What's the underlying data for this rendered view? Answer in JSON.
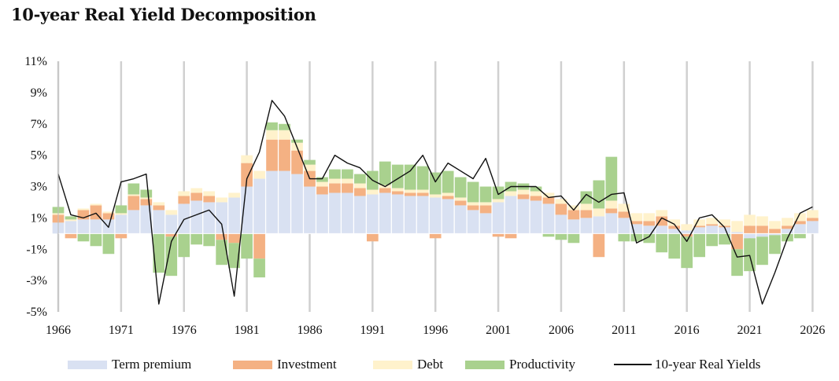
{
  "title": "10-year Real Yield Decomposition",
  "colors": {
    "term_premium": "#d9e1f2",
    "investment": "#f4b183",
    "debt": "#fff2cc",
    "productivity": "#a9d18e",
    "real_yield": "#111111",
    "gridline": "#d0d0d0"
  },
  "chart_data": {
    "type": "area",
    "title": "10-year Real Yield Decomposition",
    "xlabel": "",
    "ylabel": "",
    "ylim": [
      -5,
      11
    ],
    "xlim": [
      1966,
      2026.6
    ],
    "grid": "vertical",
    "legend_position": "bottom",
    "y_ticks": [
      "11%",
      "9%",
      "7%",
      "5%",
      "3%",
      "1%",
      "-1%",
      "-3%",
      "-5%"
    ],
    "y_tick_values": [
      11,
      9,
      7,
      5,
      3,
      1,
      -1,
      -3,
      -5
    ],
    "x_ticks": [
      "1966",
      "1971",
      "1976",
      "1981",
      "1986",
      "1991",
      "1996",
      "2001",
      "2006",
      "2011",
      "2016",
      "2021",
      "2026"
    ],
    "x_tick_values": [
      1966,
      1971,
      1976,
      1981,
      1986,
      1991,
      1996,
      2001,
      2006,
      2011,
      2016,
      2021,
      2026
    ],
    "x": [
      1966,
      1967,
      1968,
      1969,
      1970,
      1971,
      1972,
      1973,
      1974,
      1975,
      1976,
      1977,
      1978,
      1979,
      1980,
      1981,
      1982,
      1983,
      1984,
      1985,
      1986,
      1987,
      1988,
      1989,
      1990,
      1991,
      1992,
      1993,
      1994,
      1995,
      1996,
      1997,
      1998,
      1999,
      2000,
      2001,
      2002,
      2003,
      2004,
      2005,
      2006,
      2007,
      2008,
      2009,
      2010,
      2011,
      2012,
      2013,
      2014,
      2015,
      2016,
      2017,
      2018,
      2019,
      2020,
      2021,
      2022,
      2023,
      2024,
      2025,
      2026
    ],
    "series": [
      {
        "name": "Term premium",
        "values": [
          0.7,
          0.8,
          0.9,
          0.9,
          0.9,
          1.2,
          1.5,
          1.8,
          1.5,
          1.2,
          1.9,
          2.1,
          2.0,
          2.0,
          2.3,
          3.0,
          3.5,
          4.0,
          4.0,
          3.8,
          3.0,
          2.5,
          2.6,
          2.6,
          2.4,
          2.5,
          2.6,
          2.5,
          2.4,
          2.4,
          2.3,
          2.2,
          1.8,
          1.5,
          1.3,
          2.0,
          2.4,
          2.2,
          2.1,
          1.9,
          1.2,
          0.9,
          1.0,
          1.1,
          1.3,
          1.0,
          0.6,
          0.5,
          0.5,
          0.3,
          0.2,
          0.4,
          0.5,
          0.4,
          0.1,
          -0.3,
          -0.2,
          -0.1,
          0.3,
          0.6,
          0.8
        ]
      },
      {
        "name": "Investment",
        "values": [
          0.5,
          -0.3,
          0.6,
          0.9,
          0.4,
          -0.3,
          0.9,
          0.4,
          0.3,
          -0.2,
          0.5,
          0.5,
          0.4,
          -0.4,
          -0.6,
          1.5,
          -1.6,
          2.0,
          2.0,
          1.5,
          1.0,
          0.5,
          0.6,
          0.6,
          0.5,
          -0.5,
          0.3,
          0.2,
          0.2,
          0.2,
          -0.3,
          0.2,
          0.3,
          0.3,
          0.5,
          -0.2,
          -0.3,
          0.3,
          0.3,
          0.4,
          0.7,
          0.6,
          0.5,
          -1.5,
          0.3,
          0.4,
          0.2,
          0.3,
          0.6,
          0.2,
          -0.2,
          0.1,
          0.1,
          0.1,
          -1.0,
          0.5,
          0.5,
          0.3,
          0.2,
          0.2,
          0.2
        ]
      },
      {
        "name": "Debt",
        "values": [
          0.1,
          0.1,
          0.1,
          0.1,
          0.1,
          0.1,
          0.1,
          0.1,
          0.2,
          0.3,
          0.3,
          0.3,
          0.3,
          0.3,
          0.3,
          0.5,
          0.5,
          0.6,
          0.6,
          0.5,
          0.4,
          0.3,
          0.3,
          0.3,
          0.3,
          0.3,
          0.2,
          0.2,
          0.2,
          0.2,
          0.2,
          0.2,
          0.2,
          0.2,
          0.2,
          0.2,
          0.3,
          0.3,
          0.3,
          0.3,
          0.3,
          0.3,
          0.4,
          0.5,
          0.5,
          0.5,
          0.5,
          0.5,
          0.4,
          0.4,
          0.4,
          0.4,
          0.4,
          0.4,
          0.7,
          0.7,
          0.6,
          0.5,
          0.5,
          0.5,
          0.5
        ]
      },
      {
        "name": "Productivity",
        "values": [
          0.4,
          0.2,
          -0.5,
          -0.8,
          -1.3,
          0.5,
          0.7,
          0.5,
          -2.5,
          -2.5,
          -1.5,
          -0.7,
          -0.8,
          -1.6,
          -1.6,
          -1.6,
          -1.2,
          0.5,
          0.4,
          0.2,
          0.3,
          0.3,
          0.6,
          0.6,
          0.6,
          1.2,
          1.5,
          1.5,
          1.6,
          1.5,
          1.4,
          1.4,
          1.3,
          1.3,
          1.0,
          0.8,
          0.6,
          0.4,
          0.3,
          -0.2,
          -0.4,
          -0.6,
          0.8,
          1.8,
          2.8,
          -0.5,
          -0.5,
          -0.6,
          -1.2,
          -1.6,
          -2.0,
          -1.5,
          -0.8,
          -0.7,
          -1.7,
          -2.1,
          -1.8,
          -1.2,
          -0.5,
          -0.3,
          0.0
        ]
      },
      {
        "name": "10-year Real Yields",
        "values": [
          3.8,
          1.2,
          1.0,
          1.3,
          0.4,
          3.3,
          3.5,
          3.8,
          -4.5,
          -0.5,
          0.9,
          1.2,
          1.5,
          0.6,
          -4.0,
          3.5,
          5.2,
          8.5,
          7.5,
          5.5,
          3.5,
          3.5,
          5.0,
          4.5,
          4.2,
          3.4,
          3.0,
          3.5,
          4.0,
          5.0,
          3.3,
          4.5,
          4.0,
          3.5,
          4.8,
          2.5,
          3.0,
          3.0,
          3.0,
          2.3,
          2.4,
          1.5,
          2.5,
          2.0,
          2.5,
          2.6,
          -0.6,
          -0.2,
          1.0,
          0.6,
          -0.5,
          1.0,
          1.2,
          0.4,
          -1.5,
          -1.4,
          -4.5,
          -2.5,
          -0.3,
          1.3,
          1.7
        ]
      }
    ]
  },
  "legend": [
    {
      "label": "Term premium",
      "kind": "area",
      "color": "#d9e1f2"
    },
    {
      "label": "Investment",
      "kind": "area",
      "color": "#f4b183"
    },
    {
      "label": "Debt",
      "kind": "area",
      "color": "#fff2cc"
    },
    {
      "label": "Productivity",
      "kind": "area",
      "color": "#a9d18e"
    },
    {
      "label": "10-year Real Yields",
      "kind": "line",
      "color": "#111111"
    }
  ]
}
